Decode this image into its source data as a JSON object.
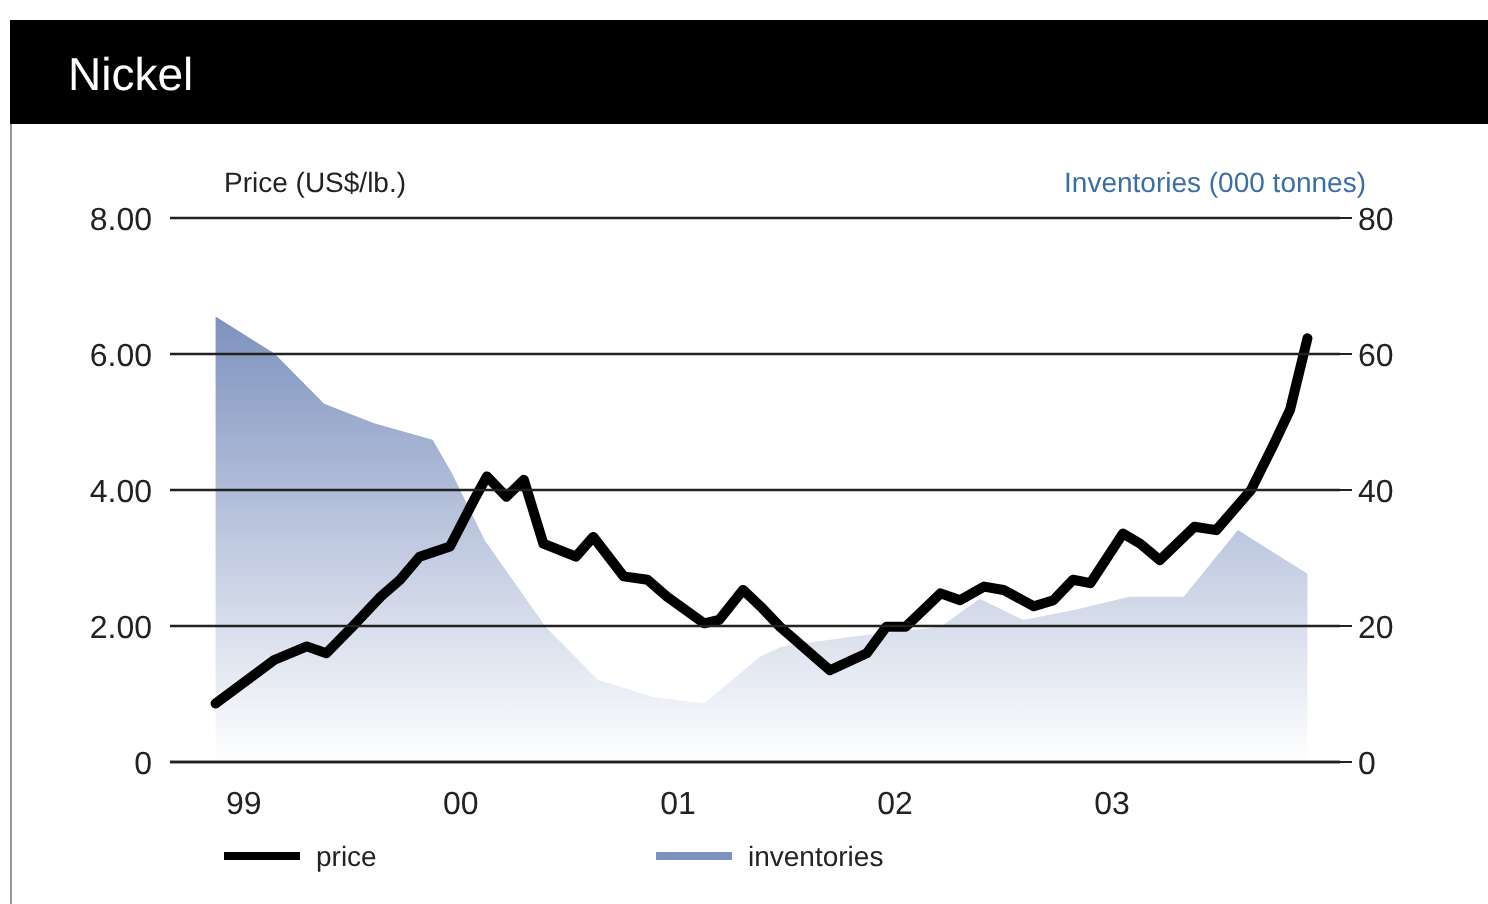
{
  "chart_data": {
    "type": "line",
    "title": "Nickel",
    "ylabel": "Price (US$/lb.)",
    "y2label": "Inventories (000 tonnes)",
    "xlim": [
      1998.66,
      2004.05
    ],
    "xticks": [
      {
        "value": 1999,
        "label": "99"
      },
      {
        "value": 2000,
        "label": "00"
      },
      {
        "value": 2001,
        "label": "01"
      },
      {
        "value": 2002,
        "label": "02"
      },
      {
        "value": 2003,
        "label": "03"
      }
    ],
    "ylim": [
      0,
      8
    ],
    "yticks": [
      {
        "value": 0,
        "label": "0"
      },
      {
        "value": 2,
        "label": "2.00"
      },
      {
        "value": 4,
        "label": "4.00"
      },
      {
        "value": 6,
        "label": "6.00"
      },
      {
        "value": 8,
        "label": "8.00"
      }
    ],
    "y2lim": [
      0,
      80
    ],
    "y2ticks": [
      0,
      20,
      40,
      60,
      80
    ],
    "grid": "y",
    "legend": "bottom",
    "series": [
      {
        "name": "inventories",
        "type": "area",
        "axis": "y2",
        "color": "#7e92bf",
        "x": [
          1998.87,
          1999.14,
          1999.37,
          1999.6,
          1999.87,
          1999.96,
          2000.11,
          2000.39,
          2000.63,
          2000.88,
          2001.12,
          2001.38,
          2001.48,
          2001.79,
          2002.21,
          2002.39,
          2002.59,
          2002.83,
          2003.08,
          2003.33,
          2003.58,
          2003.9
        ],
        "values": [
          65.5,
          60.1,
          52.7,
          49.8,
          47.4,
          42.4,
          32.6,
          19.9,
          12.1,
          9.6,
          8.6,
          15.5,
          17.0,
          18.4,
          19.9,
          24.0,
          20.9,
          22.4,
          24.3,
          24.3,
          34.1,
          27.7
        ]
      },
      {
        "name": "price",
        "axis": "y",
        "color": "#000000",
        "x": [
          1998.87,
          1999.14,
          1999.29,
          1999.38,
          1999.5,
          1999.63,
          1999.72,
          1999.81,
          1999.95,
          2000.06,
          2000.12,
          2000.21,
          2000.29,
          2000.38,
          2000.53,
          2000.61,
          2000.75,
          2000.86,
          2000.95,
          2001.12,
          2001.19,
          2001.3,
          2001.38,
          2001.47,
          2001.7,
          2001.87,
          2001.96,
          2002.05,
          2002.21,
          2002.3,
          2002.41,
          2002.5,
          2002.64,
          2002.73,
          2002.82,
          2002.9,
          2003.05,
          2003.13,
          2003.22,
          2003.38,
          2003.48,
          2003.64,
          2003.74,
          2003.82,
          2003.9
        ],
        "values": [
          0.86,
          1.5,
          1.7,
          1.6,
          1.99,
          2.43,
          2.68,
          3.02,
          3.17,
          3.85,
          4.2,
          3.9,
          4.15,
          3.21,
          3.02,
          3.31,
          2.73,
          2.68,
          2.43,
          2.04,
          2.09,
          2.53,
          2.29,
          1.99,
          1.35,
          1.6,
          1.99,
          1.99,
          2.48,
          2.38,
          2.58,
          2.53,
          2.29,
          2.38,
          2.68,
          2.63,
          3.36,
          3.21,
          2.97,
          3.46,
          3.41,
          4.0,
          4.64,
          5.18,
          6.23
        ]
      }
    ]
  }
}
